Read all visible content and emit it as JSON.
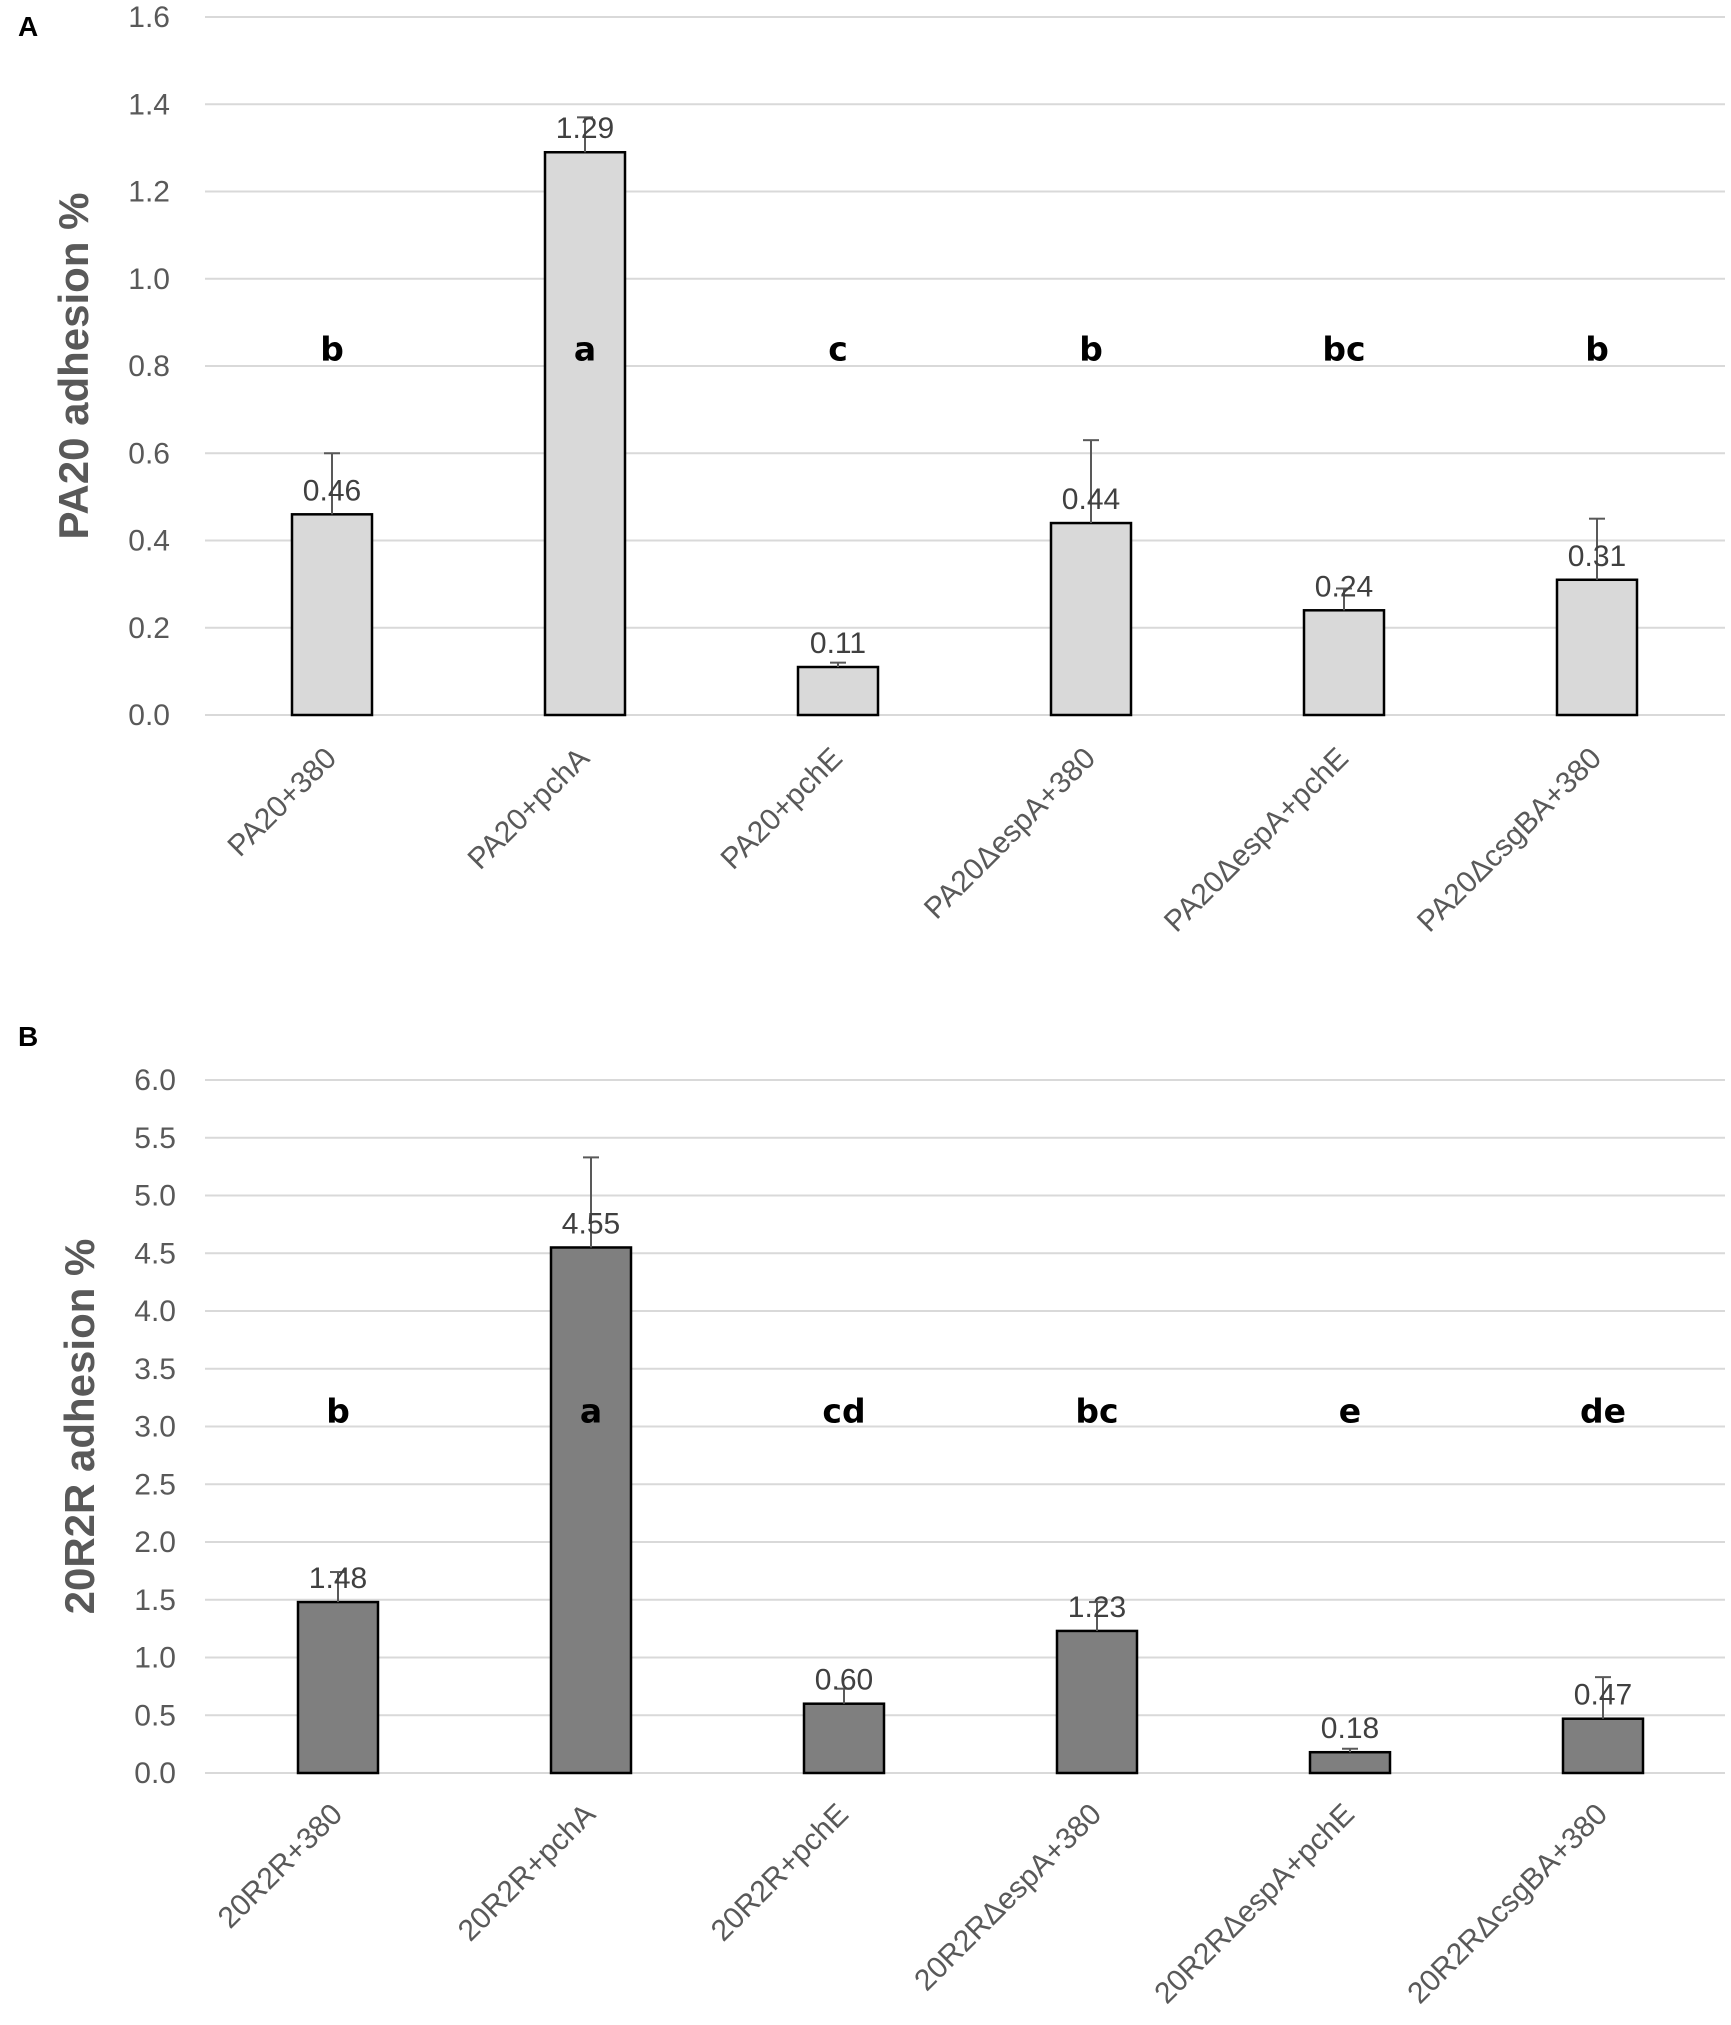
{
  "chart_data": [
    {
      "type": "bar",
      "panel": "A",
      "ylabel": "PA20 adhesion %",
      "ylim": [
        0,
        1.6
      ],
      "yticks": [
        "0.0",
        "0.2",
        "0.4",
        "0.6",
        "0.8",
        "1.0",
        "1.2",
        "1.4",
        "1.6"
      ],
      "bar_color": "#d9d9d9",
      "categories": [
        "PA20+380",
        "PA20+pchA",
        "PA20+pchE",
        "PA20ΔespA+380",
        "PA20ΔespA+pchE",
        "PA20ΔcsgBA+380"
      ],
      "values": [
        0.46,
        1.29,
        0.11,
        0.44,
        0.24,
        0.31
      ],
      "value_labels": [
        "0.46",
        "1.29",
        "0.11",
        "0.44",
        "0.24",
        "0.31"
      ],
      "errors": [
        0.14,
        0.08,
        0.01,
        0.19,
        0.05,
        0.14
      ],
      "significance": [
        "b",
        "a",
        "c",
        "b",
        "bc",
        "b"
      ],
      "significance_level": 0.84
    },
    {
      "type": "bar",
      "panel": "B",
      "ylabel": "20R2R adhesion %",
      "ylim": [
        0,
        6.0
      ],
      "yticks": [
        "0.0",
        "0.5",
        "1.0",
        "1.5",
        "2.0",
        "2.5",
        "3.0",
        "3.5",
        "4.0",
        "4.5",
        "5.0",
        "5.5",
        "6.0"
      ],
      "bar_color": "#7f7f7f",
      "categories": [
        "20R2R+380",
        "20R2R+pchA",
        "20R2R+pchE",
        "20R2RΔespA+380",
        "20R2RΔespA+pchE",
        "20R2RΔcsgBA+380"
      ],
      "values": [
        1.48,
        4.55,
        0.6,
        1.23,
        0.18,
        0.47
      ],
      "value_labels": [
        "1.48",
        "4.55",
        "0.60",
        "1.23",
        "0.18",
        "0.47"
      ],
      "errors": [
        0.26,
        0.78,
        0.13,
        0.25,
        0.03,
        0.36
      ],
      "significance": [
        "b",
        "a",
        "cd",
        "bc",
        "e",
        "de"
      ],
      "significance_level": 3.14
    }
  ]
}
